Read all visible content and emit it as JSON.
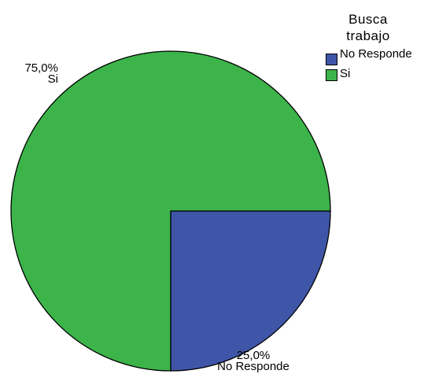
{
  "chart_data": {
    "type": "pie",
    "title": "",
    "legend_title": [
      "Busca",
      "trabajo"
    ],
    "legend_position": "top-right",
    "slices": [
      {
        "label": "No Responde",
        "value": 25.0,
        "value_text": "25,0%",
        "color": "#3f56a8"
      },
      {
        "label": "Si",
        "value": 75.0,
        "value_text": "75,0%",
        "color": "#3cb44a"
      }
    ]
  },
  "legend": {
    "title_line1": "Busca",
    "title_line2": "trabajo",
    "items": [
      {
        "label": "No Responde",
        "color": "#3f56a8"
      },
      {
        "label": "Si",
        "color": "#3cb44a"
      }
    ]
  }
}
